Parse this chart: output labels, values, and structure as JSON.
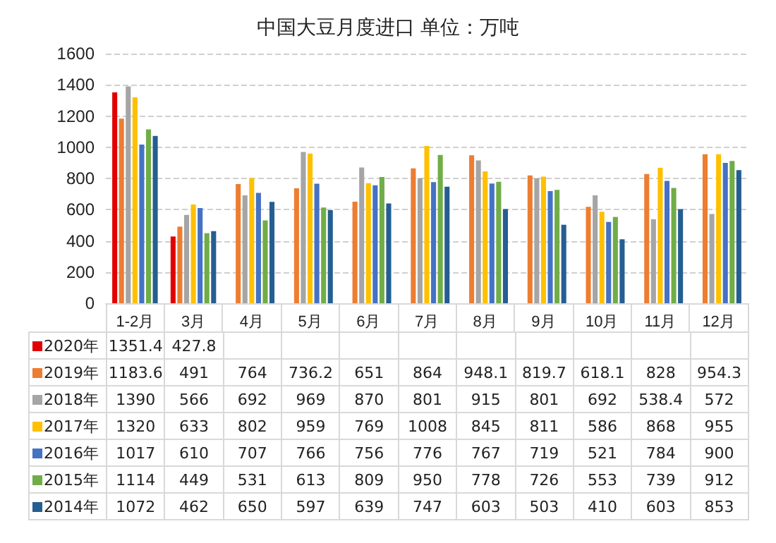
{
  "chart_data": {
    "type": "bar",
    "title": "中国大豆月度进口 单位：万吨",
    "categories": [
      "1-2月",
      "3月",
      "4月",
      "5月",
      "6月",
      "7月",
      "8月",
      "9月",
      "10月",
      "11月",
      "12月"
    ],
    "series": [
      {
        "name": "2020年",
        "color": "#e00000",
        "values": [
          1351.4,
          427.8,
          null,
          null,
          null,
          null,
          null,
          null,
          null,
          null,
          null
        ]
      },
      {
        "name": "2019年",
        "color": "#ed7d31",
        "values": [
          1183.6,
          491,
          764,
          736.2,
          651,
          864,
          948.1,
          819.7,
          618.1,
          828,
          954.3
        ]
      },
      {
        "name": "2018年",
        "color": "#a5a5a5",
        "values": [
          1390,
          566,
          692,
          969,
          870,
          801,
          915,
          801,
          692,
          538.4,
          572
        ]
      },
      {
        "name": "2017年",
        "color": "#ffc000",
        "values": [
          1320,
          633,
          802,
          959,
          769,
          1008,
          845,
          811,
          586,
          868,
          955
        ]
      },
      {
        "name": "2016年",
        "color": "#4472c4",
        "values": [
          1017,
          610,
          707,
          766,
          756,
          776,
          767,
          719,
          521,
          784,
          900
        ]
      },
      {
        "name": "2015年",
        "color": "#70ad47",
        "values": [
          1114,
          449,
          531,
          613,
          809,
          950,
          778,
          726,
          553,
          739,
          912
        ]
      },
      {
        "name": "2014年",
        "color": "#255e91",
        "values": [
          1072,
          462,
          650,
          597,
          639,
          747,
          603,
          503,
          410,
          603,
          853
        ]
      }
    ],
    "ylim": [
      0,
      1600
    ],
    "yticks": [
      0,
      200,
      400,
      600,
      800,
      1000,
      1200,
      1400,
      1600
    ],
    "grid": "y",
    "legend": "bottom",
    "data_labels": true
  }
}
